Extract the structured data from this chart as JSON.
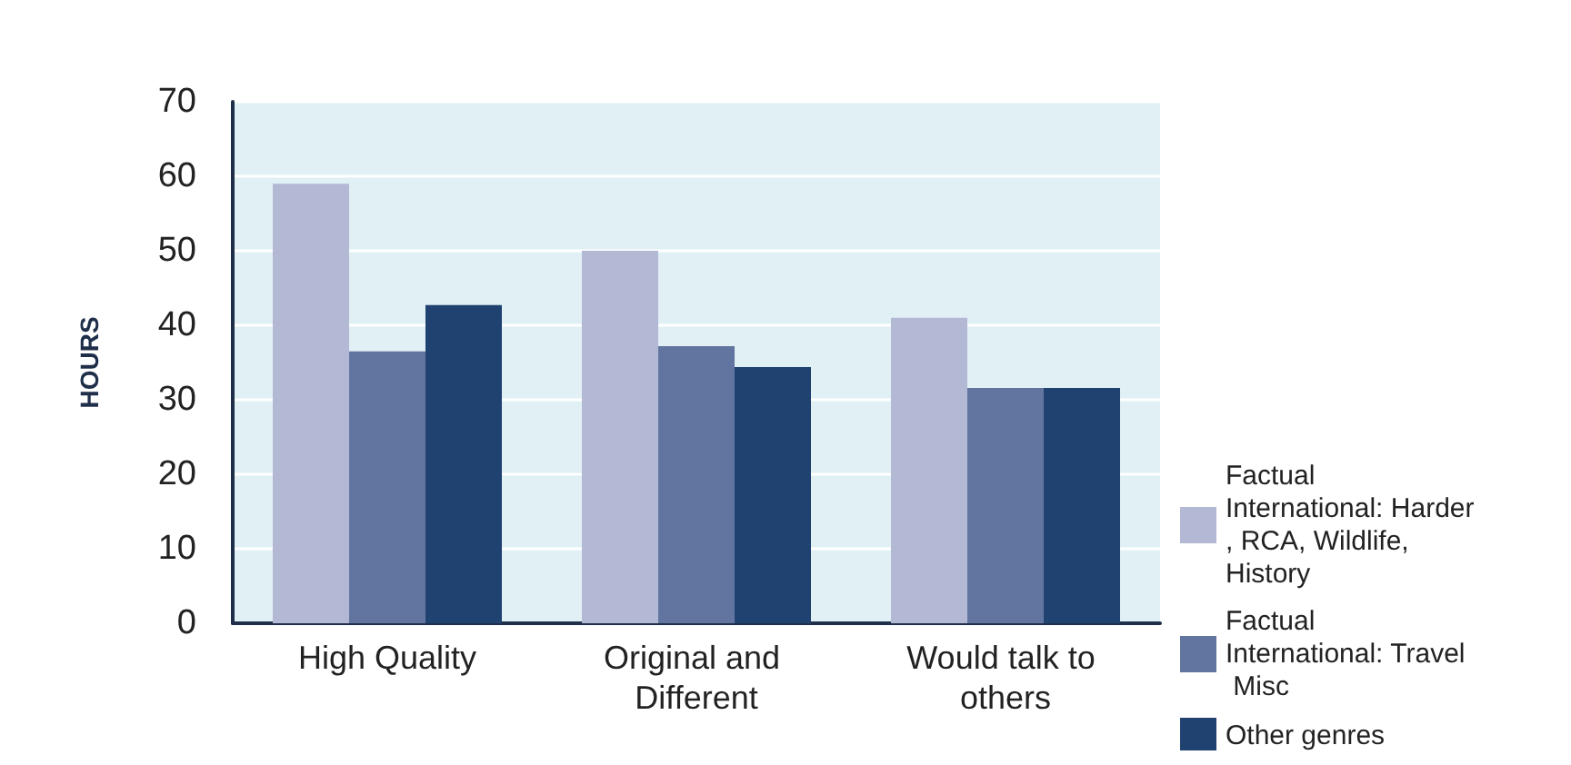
{
  "chart_data": {
    "type": "bar",
    "ylabel": "HOURS",
    "categories": [
      "High Quality",
      "Original and Different",
      "Would talk to others"
    ],
    "series": [
      {
        "name": "Factual International: Harder, RCA, Wildlife, History",
        "color": "#b3b9d4",
        "values": [
          59,
          50,
          41
        ]
      },
      {
        "name": "Factual International: Travel Misc",
        "color": "#6275a0",
        "values": [
          36.5,
          37.2,
          31.6
        ]
      },
      {
        "name": "Other genres",
        "color": "#1f4270",
        "values": [
          42.7,
          34.4,
          31.6
        ]
      }
    ],
    "ylim": [
      0,
      70
    ],
    "yticks": [
      0,
      10,
      20,
      30,
      40,
      50,
      60,
      70
    ],
    "grid": "y",
    "legend": "right"
  }
}
